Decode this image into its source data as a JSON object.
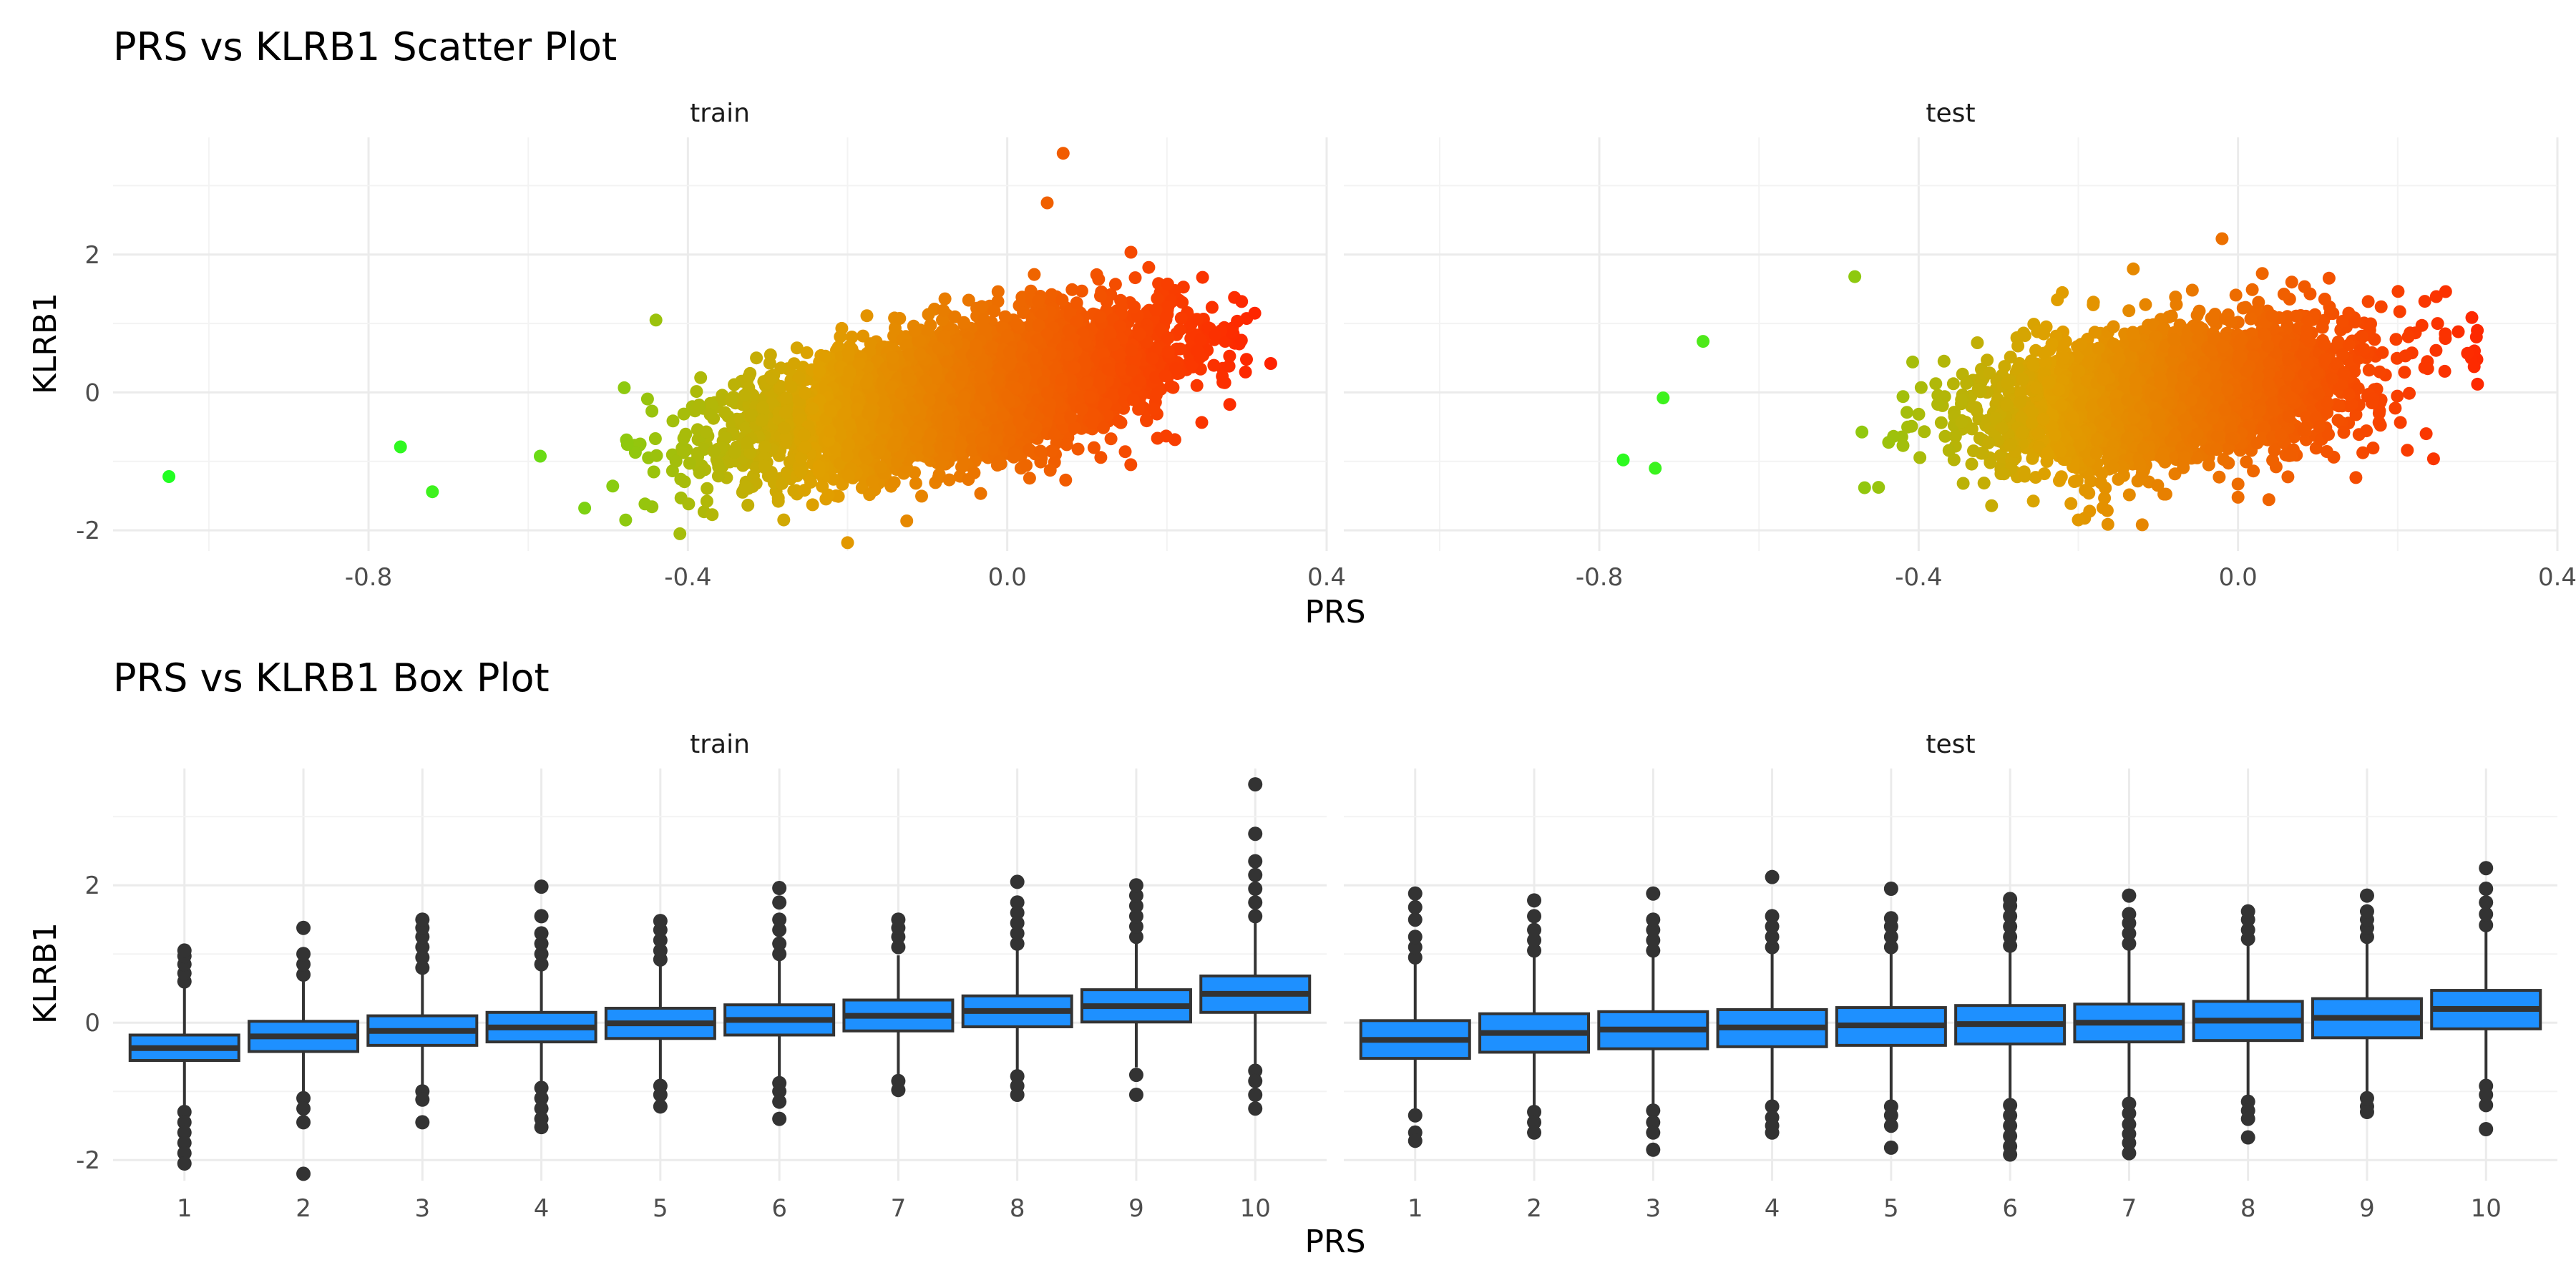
{
  "chart_data": [
    {
      "type": "scatter",
      "title": "PRS vs KLRB1 Scatter Plot",
      "xlabel": "PRS",
      "ylabel": "KLRB1",
      "facets": [
        "train",
        "test"
      ],
      "xlim": [
        -1.12,
        0.4
      ],
      "ylim": [
        -2.3,
        3.7
      ],
      "x_ticks": [
        "-0.8",
        "-0.4",
        "0.0",
        "0.4"
      ],
      "x_tick_values": [
        -0.8,
        -0.4,
        0.0,
        0.4
      ],
      "y_ticks": [
        "-2",
        "0",
        "2"
      ],
      "y_tick_values": [
        -2,
        0,
        2
      ],
      "color_gradient": {
        "low": "#22ff22",
        "mid": "#e0a000",
        "high": "#ff2200"
      },
      "series": [
        {
          "facet": "train",
          "n_points": 5000,
          "trend": {
            "slope": 2.2,
            "intercept": 0.15,
            "sd": 0.45
          },
          "x_distribution": {
            "mean": -0.06,
            "sd": 0.13
          },
          "notable_points": [
            [
              -1.05,
              -1.22
            ],
            [
              0.07,
              3.47
            ],
            [
              0.05,
              2.75
            ],
            [
              0.33,
              0.42
            ],
            [
              0.31,
              1.15
            ],
            [
              -0.2,
              -2.18
            ],
            [
              -0.41,
              -2.05
            ],
            [
              -0.28,
              -1.85
            ],
            [
              -0.44,
              1.05
            ],
            [
              -0.76,
              -0.79
            ],
            [
              -0.72,
              -1.44
            ]
          ]
        },
        {
          "facet": "test",
          "n_points": 2800,
          "trend": {
            "slope": 1.5,
            "intercept": 0.1,
            "sd": 0.5
          },
          "x_distribution": {
            "mean": -0.08,
            "sd": 0.12
          },
          "notable_points": [
            [
              -0.77,
              -0.98
            ],
            [
              -0.73,
              -1.1
            ],
            [
              -0.72,
              -0.08
            ],
            [
              -0.67,
              0.74
            ],
            [
              -0.48,
              1.68
            ],
            [
              0.3,
              0.12
            ],
            [
              0.25,
              1.0
            ],
            [
              -0.02,
              2.23
            ],
            [
              -0.12,
              -1.92
            ],
            [
              -0.2,
              -1.85
            ],
            [
              0.0,
              -1.52
            ]
          ]
        }
      ]
    },
    {
      "type": "box",
      "title": "PRS vs KLRB1 Box Plot",
      "xlabel": "PRS",
      "ylabel": "KLRB1",
      "facets": [
        "train",
        "test"
      ],
      "categories": [
        "1",
        "2",
        "3",
        "4",
        "5",
        "6",
        "7",
        "8",
        "9",
        "10"
      ],
      "ylim": [
        -2.3,
        3.7
      ],
      "y_ticks": [
        "-2",
        "0",
        "2"
      ],
      "y_tick_values": [
        -2,
        0,
        2
      ],
      "box_fill": "#1e90ff",
      "box_stroke": "#333333",
      "series": [
        {
          "facet": "train",
          "boxes": [
            {
              "category": "1",
              "q1": -0.55,
              "median": -0.37,
              "q3": -0.18,
              "whisker_low": -1.2,
              "whisker_high": 0.5,
              "outliers": [
                -1.3,
                -1.45,
                -1.6,
                -1.75,
                -1.9,
                -2.05,
                0.6,
                0.72,
                0.85,
                0.97,
                1.05
              ]
            },
            {
              "category": "2",
              "q1": -0.42,
              "median": -0.2,
              "q3": 0.02,
              "whisker_low": -1.0,
              "whisker_high": 0.6,
              "outliers": [
                -1.1,
                -1.25,
                -1.45,
                -2.2,
                0.7,
                0.85,
                1.0,
                1.38
              ]
            },
            {
              "category": "3",
              "q1": -0.33,
              "median": -0.12,
              "q3": 0.1,
              "whisker_low": -0.95,
              "whisker_high": 0.7,
              "outliers": [
                -1.0,
                -1.12,
                -1.45,
                0.8,
                0.95,
                1.1,
                1.25,
                1.38,
                1.5
              ]
            },
            {
              "category": "4",
              "q1": -0.28,
              "median": -0.07,
              "q3": 0.15,
              "whisker_low": -0.85,
              "whisker_high": 0.75,
              "outliers": [
                -0.95,
                -1.1,
                -1.25,
                -1.4,
                -1.52,
                0.85,
                1.0,
                1.15,
                1.3,
                1.55,
                1.98
              ]
            },
            {
              "category": "5",
              "q1": -0.23,
              "median": -0.01,
              "q3": 0.21,
              "whisker_low": -0.85,
              "whisker_high": 0.85,
              "outliers": [
                -0.92,
                -1.05,
                -1.22,
                0.92,
                1.05,
                1.2,
                1.35,
                1.48
              ]
            },
            {
              "category": "6",
              "q1": -0.18,
              "median": 0.04,
              "q3": 0.26,
              "whisker_low": -0.8,
              "whisker_high": 0.9,
              "outliers": [
                -0.88,
                -1.0,
                -1.15,
                -1.4,
                1.0,
                1.15,
                1.35,
                1.5,
                1.75,
                1.96
              ]
            },
            {
              "category": "7",
              "q1": -0.12,
              "median": 0.1,
              "q3": 0.33,
              "whisker_low": -0.75,
              "whisker_high": 0.98,
              "outliers": [
                -0.85,
                -0.98,
                1.1,
                1.25,
                1.38,
                1.5
              ]
            },
            {
              "category": "8",
              "q1": -0.06,
              "median": 0.17,
              "q3": 0.39,
              "whisker_low": -0.68,
              "whisker_high": 1.05,
              "outliers": [
                -0.78,
                -0.92,
                -1.05,
                1.15,
                1.3,
                1.45,
                1.6,
                1.75,
                2.05
              ]
            },
            {
              "category": "9",
              "q1": 0.01,
              "median": 0.24,
              "q3": 0.48,
              "whisker_low": -0.65,
              "whisker_high": 1.15,
              "outliers": [
                -0.76,
                -1.05,
                1.25,
                1.4,
                1.55,
                1.7,
                1.85,
                2.0
              ]
            },
            {
              "category": "10",
              "q1": 0.15,
              "median": 0.42,
              "q3": 0.68,
              "whisker_low": -0.6,
              "whisker_high": 1.45,
              "outliers": [
                -0.7,
                -0.85,
                -1.05,
                -1.25,
                1.55,
                1.75,
                1.95,
                2.15,
                2.35,
                2.75,
                3.47
              ]
            }
          ]
        },
        {
          "facet": "test",
          "boxes": [
            {
              "category": "1",
              "q1": -0.52,
              "median": -0.25,
              "q3": 0.03,
              "whisker_low": -1.3,
              "whisker_high": 0.85,
              "outliers": [
                -1.35,
                -1.6,
                -1.72,
                0.95,
                1.1,
                1.25,
                1.5,
                1.68,
                1.88
              ]
            },
            {
              "category": "2",
              "q1": -0.43,
              "median": -0.15,
              "q3": 0.13,
              "whisker_low": -1.25,
              "whisker_high": 0.95,
              "outliers": [
                -1.3,
                -1.45,
                -1.6,
                1.05,
                1.2,
                1.35,
                1.55,
                1.78
              ]
            },
            {
              "category": "3",
              "q1": -0.38,
              "median": -0.1,
              "q3": 0.16,
              "whisker_low": -1.2,
              "whisker_high": 0.98,
              "outliers": [
                -1.28,
                -1.45,
                -1.6,
                -1.85,
                1.05,
                1.2,
                1.35,
                1.5,
                1.88
              ]
            },
            {
              "category": "4",
              "q1": -0.35,
              "median": -0.07,
              "q3": 0.19,
              "whisker_low": -1.15,
              "whisker_high": 1.0,
              "outliers": [
                -1.22,
                -1.38,
                -1.5,
                -1.6,
                1.1,
                1.25,
                1.4,
                1.55,
                2.12
              ]
            },
            {
              "category": "5",
              "q1": -0.33,
              "median": -0.04,
              "q3": 0.22,
              "whisker_low": -1.15,
              "whisker_high": 1.02,
              "outliers": [
                -1.22,
                -1.35,
                -1.5,
                -1.82,
                1.1,
                1.25,
                1.4,
                1.52,
                1.95
              ]
            },
            {
              "category": "6",
              "q1": -0.31,
              "median": -0.02,
              "q3": 0.25,
              "whisker_low": -1.12,
              "whisker_high": 1.05,
              "outliers": [
                -1.2,
                -1.35,
                -1.5,
                -1.65,
                -1.8,
                -1.92,
                1.12,
                1.25,
                1.4,
                1.55,
                1.7,
                1.8
              ]
            },
            {
              "category": "7",
              "q1": -0.28,
              "median": 0.0,
              "q3": 0.27,
              "whisker_low": -1.1,
              "whisker_high": 1.08,
              "outliers": [
                -1.18,
                -1.32,
                -1.48,
                -1.62,
                -1.75,
                -1.9,
                1.15,
                1.3,
                1.45,
                1.58,
                1.85
              ]
            },
            {
              "category": "8",
              "q1": -0.26,
              "median": 0.03,
              "q3": 0.31,
              "whisker_low": -1.08,
              "whisker_high": 1.12,
              "outliers": [
                -1.15,
                -1.28,
                -1.4,
                -1.67,
                1.22,
                1.35,
                1.5,
                1.62
              ]
            },
            {
              "category": "9",
              "q1": -0.22,
              "median": 0.07,
              "q3": 0.35,
              "whisker_low": -1.02,
              "whisker_high": 1.18,
              "outliers": [
                -1.1,
                -1.22,
                -1.3,
                1.25,
                1.38,
                1.5,
                1.62,
                1.85
              ]
            },
            {
              "category": "10",
              "q1": -0.09,
              "median": 0.2,
              "q3": 0.47,
              "whisker_low": -0.85,
              "whisker_high": 1.32,
              "outliers": [
                -0.92,
                -1.05,
                -1.2,
                -1.55,
                1.42,
                1.58,
                1.75,
                1.95,
                2.25
              ]
            }
          ]
        }
      ]
    }
  ]
}
